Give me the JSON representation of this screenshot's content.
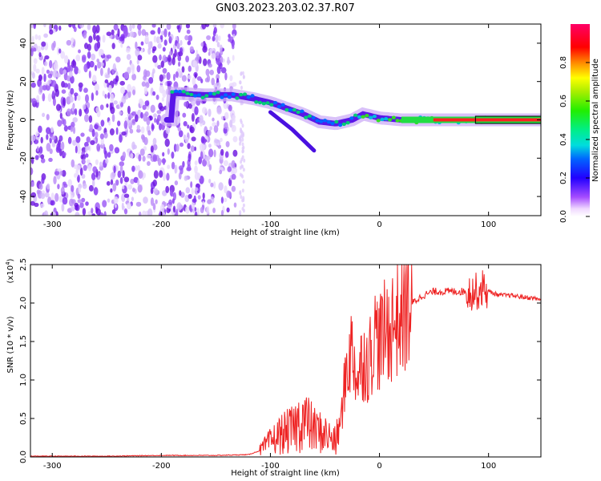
{
  "title": "GN03.2023.203.02.37.R07",
  "colors": {
    "snr_line": "#ee2222",
    "axes": "#000000",
    "noise_purple": "#7a22e6"
  },
  "chart_data": [
    {
      "type": "heatmap",
      "ylabel": "Frequency (Hz)",
      "xlabel": "Height of straight line (km)",
      "xlim": [
        -320,
        148
      ],
      "ylim": [
        -50,
        50
      ],
      "xticks": [
        -300,
        -200,
        -100,
        0,
        100
      ],
      "yticks": [
        -40,
        -20,
        0,
        20,
        40
      ],
      "colorbar": {
        "label": "Normalized spectral amplitude",
        "range": [
          0,
          1
        ],
        "ticks": [
          "0.0",
          "0.2",
          "0.4",
          "0.6",
          "0.8"
        ],
        "colormap": "rainbow (purple to red)"
      },
      "ridge": {
        "x": [
          -190,
          -160,
          -135,
          -115,
          -100,
          -85,
          -70,
          -55,
          -40,
          -25,
          -15,
          0,
          20,
          60,
          100,
          148
        ],
        "y": [
          14,
          13,
          13,
          11,
          9,
          6,
          3,
          -1,
          -2,
          0,
          3,
          1,
          0,
          0,
          0,
          0
        ]
      }
    },
    {
      "type": "line",
      "ylabel": "SNR (10 * v/v)",
      "ylabel_multiplier": "(x10^4)",
      "xlabel": "Height of straight line (km)",
      "xlim": [
        -320,
        148
      ],
      "ylim": [
        0,
        2.5
      ],
      "xticks": [
        -300,
        -200,
        -100,
        0,
        100
      ],
      "yticks": [
        "0.0",
        "0.5",
        "1.0",
        "1.5",
        "2.0",
        "2.5"
      ],
      "series": [
        {
          "x": [
            -320,
            -250,
            -200,
            -150,
            -120,
            -110,
            -100,
            -90,
            -80,
            -70,
            -60,
            -50,
            -40,
            -35,
            -30,
            -25,
            -20,
            -15,
            -10,
            -5,
            0,
            10,
            20,
            30,
            40,
            50,
            60,
            70,
            80,
            90,
            95,
            100,
            110,
            120,
            130,
            148
          ],
          "y": [
            0.01,
            0.01,
            0.02,
            0.02,
            0.03,
            0.08,
            0.2,
            0.3,
            0.35,
            0.5,
            0.35,
            0.3,
            0.2,
            0.5,
            1.2,
            1.4,
            1.0,
            1.3,
            1.2,
            1.6,
            1.5,
            1.7,
            1.85,
            2.0,
            2.1,
            2.15,
            2.15,
            2.15,
            2.15,
            2.15,
            2.2,
            2.15,
            2.1,
            2.1,
            2.08,
            2.05
          ]
        }
      ]
    }
  ]
}
